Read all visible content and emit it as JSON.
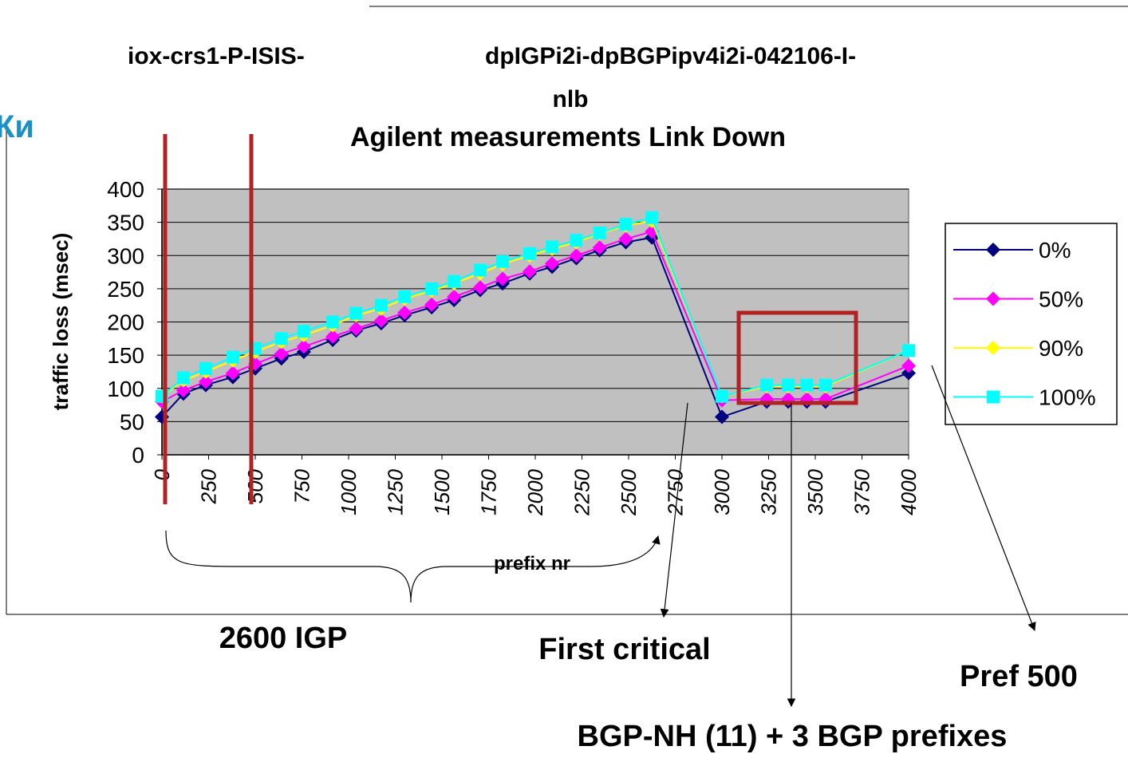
{
  "chart_data": {
    "type": "line",
    "title": [
      "iox-crs1-P-ISIS-",
      "dpIGPi2i-dpBGPipv4i2i-042106-I-",
      "nlb",
      "Agilent measurements Link Down"
    ],
    "background_text": "Ки",
    "x_label": "prefix nr",
    "y_label": "traffic loss (msec)",
    "x": [
      0,
      115,
      235,
      380,
      500,
      640,
      760,
      915,
      1040,
      1175,
      1300,
      1445,
      1565,
      1705,
      1825,
      1970,
      2090,
      2220,
      2345,
      2485,
      2625,
      3000,
      3240,
      3355,
      3455,
      3555,
      4000
    ],
    "series": [
      {
        "name": "0%",
        "color": "#000080",
        "marker": "diamond",
        "values": [
          57,
          92,
          105,
          117,
          130,
          145,
          155,
          173,
          187,
          198,
          210,
          222,
          233,
          248,
          258,
          273,
          283,
          296,
          308,
          320,
          327,
          57,
          80,
          80,
          80,
          80,
          123
        ]
      },
      {
        "name": "50%",
        "color": "#ff00ff",
        "marker": "diamond",
        "values": [
          80,
          97,
          110,
          123,
          137,
          152,
          163,
          178,
          190,
          202,
          214,
          226,
          238,
          252,
          265,
          276,
          288,
          300,
          312,
          325,
          336,
          82,
          84,
          84,
          84,
          84,
          134
        ]
      },
      {
        "name": "90%",
        "color": "#ffff00",
        "marker": "diamond",
        "values": [
          88,
          112,
          125,
          142,
          155,
          170,
          180,
          195,
          210,
          220,
          235,
          247,
          258,
          273,
          287,
          300,
          310,
          320,
          333,
          345,
          352,
          88,
          103,
          103,
          103,
          103,
          157
        ]
      },
      {
        "name": "100%",
        "color": "#00ffff",
        "marker": "square",
        "values": [
          88,
          116,
          130,
          147,
          160,
          175,
          186,
          200,
          213,
          225,
          238,
          250,
          261,
          278,
          291,
          303,
          313,
          323,
          334,
          347,
          357,
          88,
          105,
          105,
          105,
          105,
          157
        ]
      }
    ],
    "xlim": [
      0,
      4000
    ],
    "xticks": [
      0,
      250,
      500,
      750,
      1000,
      1250,
      1500,
      1750,
      2000,
      2250,
      2500,
      2750,
      3000,
      3250,
      3500,
      3750,
      4000
    ],
    "ylim": [
      0,
      400
    ],
    "yticks": [
      0,
      50,
      100,
      150,
      200,
      250,
      300,
      350,
      400
    ],
    "grid": true,
    "plot_background": "#c0c0c0",
    "legend": "right",
    "annotations": [
      "2600 IGP",
      "First critical",
      "Pref 500",
      "BGP-NH (11) + 3 BGP prefixes"
    ]
  }
}
